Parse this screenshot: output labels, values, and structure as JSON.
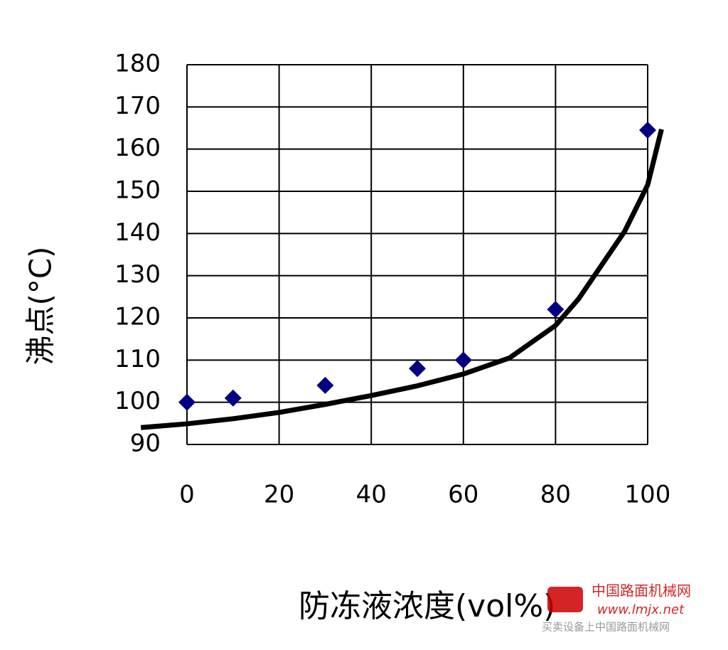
{
  "chart_data": {
    "type": "scatter",
    "x_label": "防冻液浓度(vol%)",
    "y_label": "沸点(°C)",
    "xlim": [
      0,
      100
    ],
    "xticks": [
      0,
      20,
      40,
      60,
      80,
      100
    ],
    "ylim": [
      90,
      180
    ],
    "yticks": [
      90,
      100,
      110,
      120,
      130,
      140,
      150,
      160,
      170,
      180
    ],
    "grid": true,
    "series": [
      {
        "mode": "markers",
        "color": "#000080",
        "x": [
          0,
          10,
          30,
          50,
          60,
          80,
          100
        ],
        "values": [
          100,
          101,
          104,
          108,
          110,
          122,
          164.5
        ]
      },
      {
        "mode": "line",
        "color": "#000000",
        "x": [
          -10,
          0,
          10,
          20,
          30,
          40,
          50,
          60,
          70,
          80,
          85,
          90,
          95,
          100,
          103
        ],
        "values": [
          94,
          94.9,
          96.1,
          97.6,
          99.5,
          101.6,
          103.9,
          106.7,
          110.5,
          118.2,
          124.5,
          132.5,
          140.5,
          151.5,
          164.7
        ]
      }
    ]
  },
  "watermark": {
    "site": "中国路面机械网",
    "url": "www.lmjx.net",
    "slogan": "买卖设备上中国路面机械网"
  }
}
